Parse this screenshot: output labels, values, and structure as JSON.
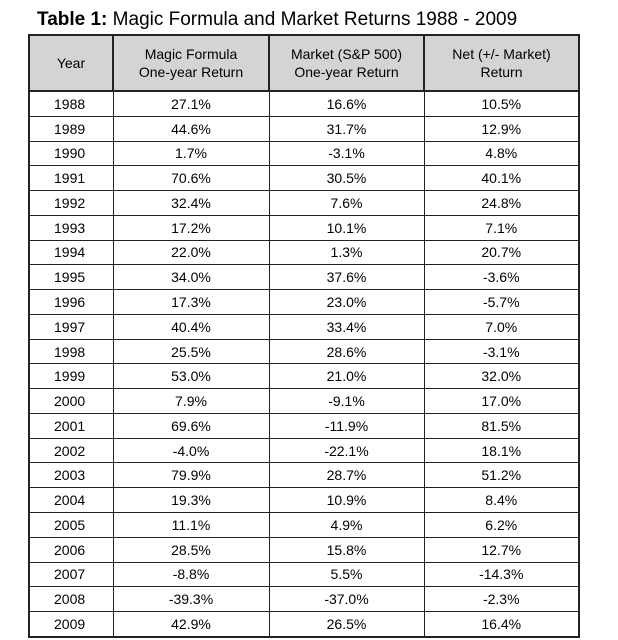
{
  "caption": {
    "lead": "Table 1:",
    "text": "Magic Formula and Market Returns 1988 - 2009"
  },
  "columns": [
    {
      "lines": [
        "Year"
      ]
    },
    {
      "lines": [
        "Magic Formula",
        "One-year Return"
      ]
    },
    {
      "lines": [
        "Market (S&P 500)",
        "One-year Return"
      ]
    },
    {
      "lines": [
        "Net (+/- Market)",
        "Return"
      ]
    }
  ],
  "rows": [
    [
      "1988",
      "27.1%",
      "16.6%",
      "10.5%"
    ],
    [
      "1989",
      "44.6%",
      "31.7%",
      "12.9%"
    ],
    [
      "1990",
      "1.7%",
      "-3.1%",
      "4.8%"
    ],
    [
      "1991",
      "70.6%",
      "30.5%",
      "40.1%"
    ],
    [
      "1992",
      "32.4%",
      "7.6%",
      "24.8%"
    ],
    [
      "1993",
      "17.2%",
      "10.1%",
      "7.1%"
    ],
    [
      "1994",
      "22.0%",
      "1.3%",
      "20.7%"
    ],
    [
      "1995",
      "34.0%",
      "37.6%",
      "-3.6%"
    ],
    [
      "1996",
      "17.3%",
      "23.0%",
      "-5.7%"
    ],
    [
      "1997",
      "40.4%",
      "33.4%",
      "7.0%"
    ],
    [
      "1998",
      "25.5%",
      "28.6%",
      "-3.1%"
    ],
    [
      "1999",
      "53.0%",
      "21.0%",
      "32.0%"
    ],
    [
      "2000",
      "7.9%",
      "-9.1%",
      "17.0%"
    ],
    [
      "2001",
      "69.6%",
      "-11.9%",
      "81.5%"
    ],
    [
      "2002",
      "-4.0%",
      "-22.1%",
      "18.1%"
    ],
    [
      "2003",
      "79.9%",
      "28.7%",
      "51.2%"
    ],
    [
      "2004",
      "19.3%",
      "10.9%",
      "8.4%"
    ],
    [
      "2005",
      "11.1%",
      "4.9%",
      "6.2%"
    ],
    [
      "2006",
      "28.5%",
      "15.8%",
      "12.7%"
    ],
    [
      "2007",
      "-8.8%",
      "5.5%",
      "-14.3%"
    ],
    [
      "2008",
      "-39.3%",
      "-37.0%",
      "-2.3%"
    ],
    [
      "2009",
      "42.9%",
      "26.5%",
      "16.4%"
    ]
  ]
}
